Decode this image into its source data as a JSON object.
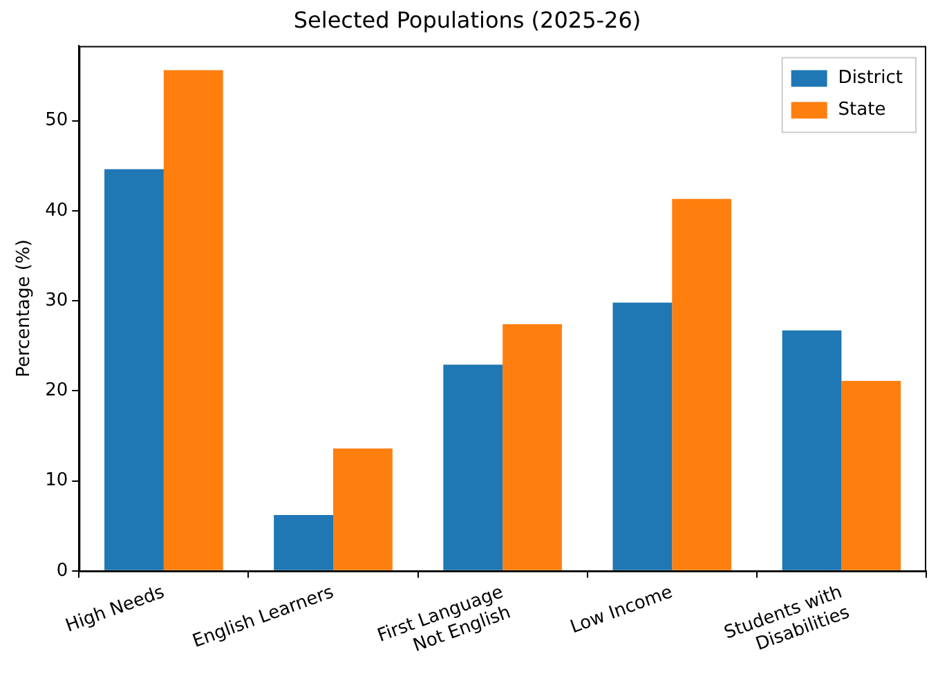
{
  "chart_data": {
    "type": "bar",
    "title": "Selected Populations (2025-26)",
    "ylabel": "Percentage (%)",
    "categories": [
      "High Needs",
      "English Learners",
      "First Language\nNot English",
      "Low Income",
      "Students with\nDisabilities"
    ],
    "series": [
      {
        "name": "District",
        "color": "#1f77b4",
        "values": [
          44.6,
          6.2,
          22.9,
          29.8,
          26.7
        ]
      },
      {
        "name": "State",
        "color": "#ff7f0e",
        "values": [
          55.6,
          13.6,
          27.4,
          41.3,
          21.1
        ]
      }
    ],
    "ylim": [
      0,
      58.3
    ],
    "yticks": [
      0,
      10,
      20,
      30,
      40,
      50
    ],
    "grid": false,
    "legend": "top right"
  }
}
